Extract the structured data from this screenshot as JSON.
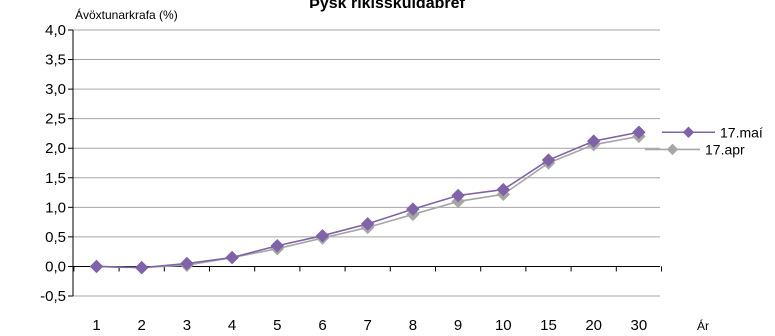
{
  "chart_data": {
    "type": "line",
    "title": "Þýsk ríkisskuldabréf",
    "ylabel": "Ávöxtunarkrafa  (%)",
    "xlabel": "Ár",
    "categories": [
      "1",
      "2",
      "3",
      "4",
      "5",
      "6",
      "7",
      "8",
      "9",
      "10",
      "15",
      "20",
      "30"
    ],
    "ylim": [
      -0.5,
      4.0
    ],
    "yticks": [
      "4,0",
      "3,5",
      "3,0",
      "2,5",
      "2,0",
      "1,5",
      "1,0",
      "0,5",
      "0,0",
      "-0,5"
    ],
    "ytick_values": [
      4.0,
      3.5,
      3.0,
      2.5,
      2.0,
      1.5,
      1.0,
      0.5,
      0.0,
      -0.5
    ],
    "grid": true,
    "legend_position": "right",
    "series": [
      {
        "name": "17.maí",
        "color": "#7f62a8",
        "marker": "diamond",
        "values": [
          0.0,
          -0.02,
          0.05,
          0.15,
          0.35,
          0.52,
          0.72,
          0.97,
          1.2,
          1.3,
          1.8,
          2.12,
          2.27
        ]
      },
      {
        "name": "17.apr",
        "color": "#a6a6a6",
        "marker": "diamond",
        "values": [
          0.0,
          -0.02,
          0.02,
          0.15,
          0.3,
          0.48,
          0.66,
          0.88,
          1.1,
          1.22,
          1.75,
          2.06,
          2.2
        ]
      }
    ]
  }
}
